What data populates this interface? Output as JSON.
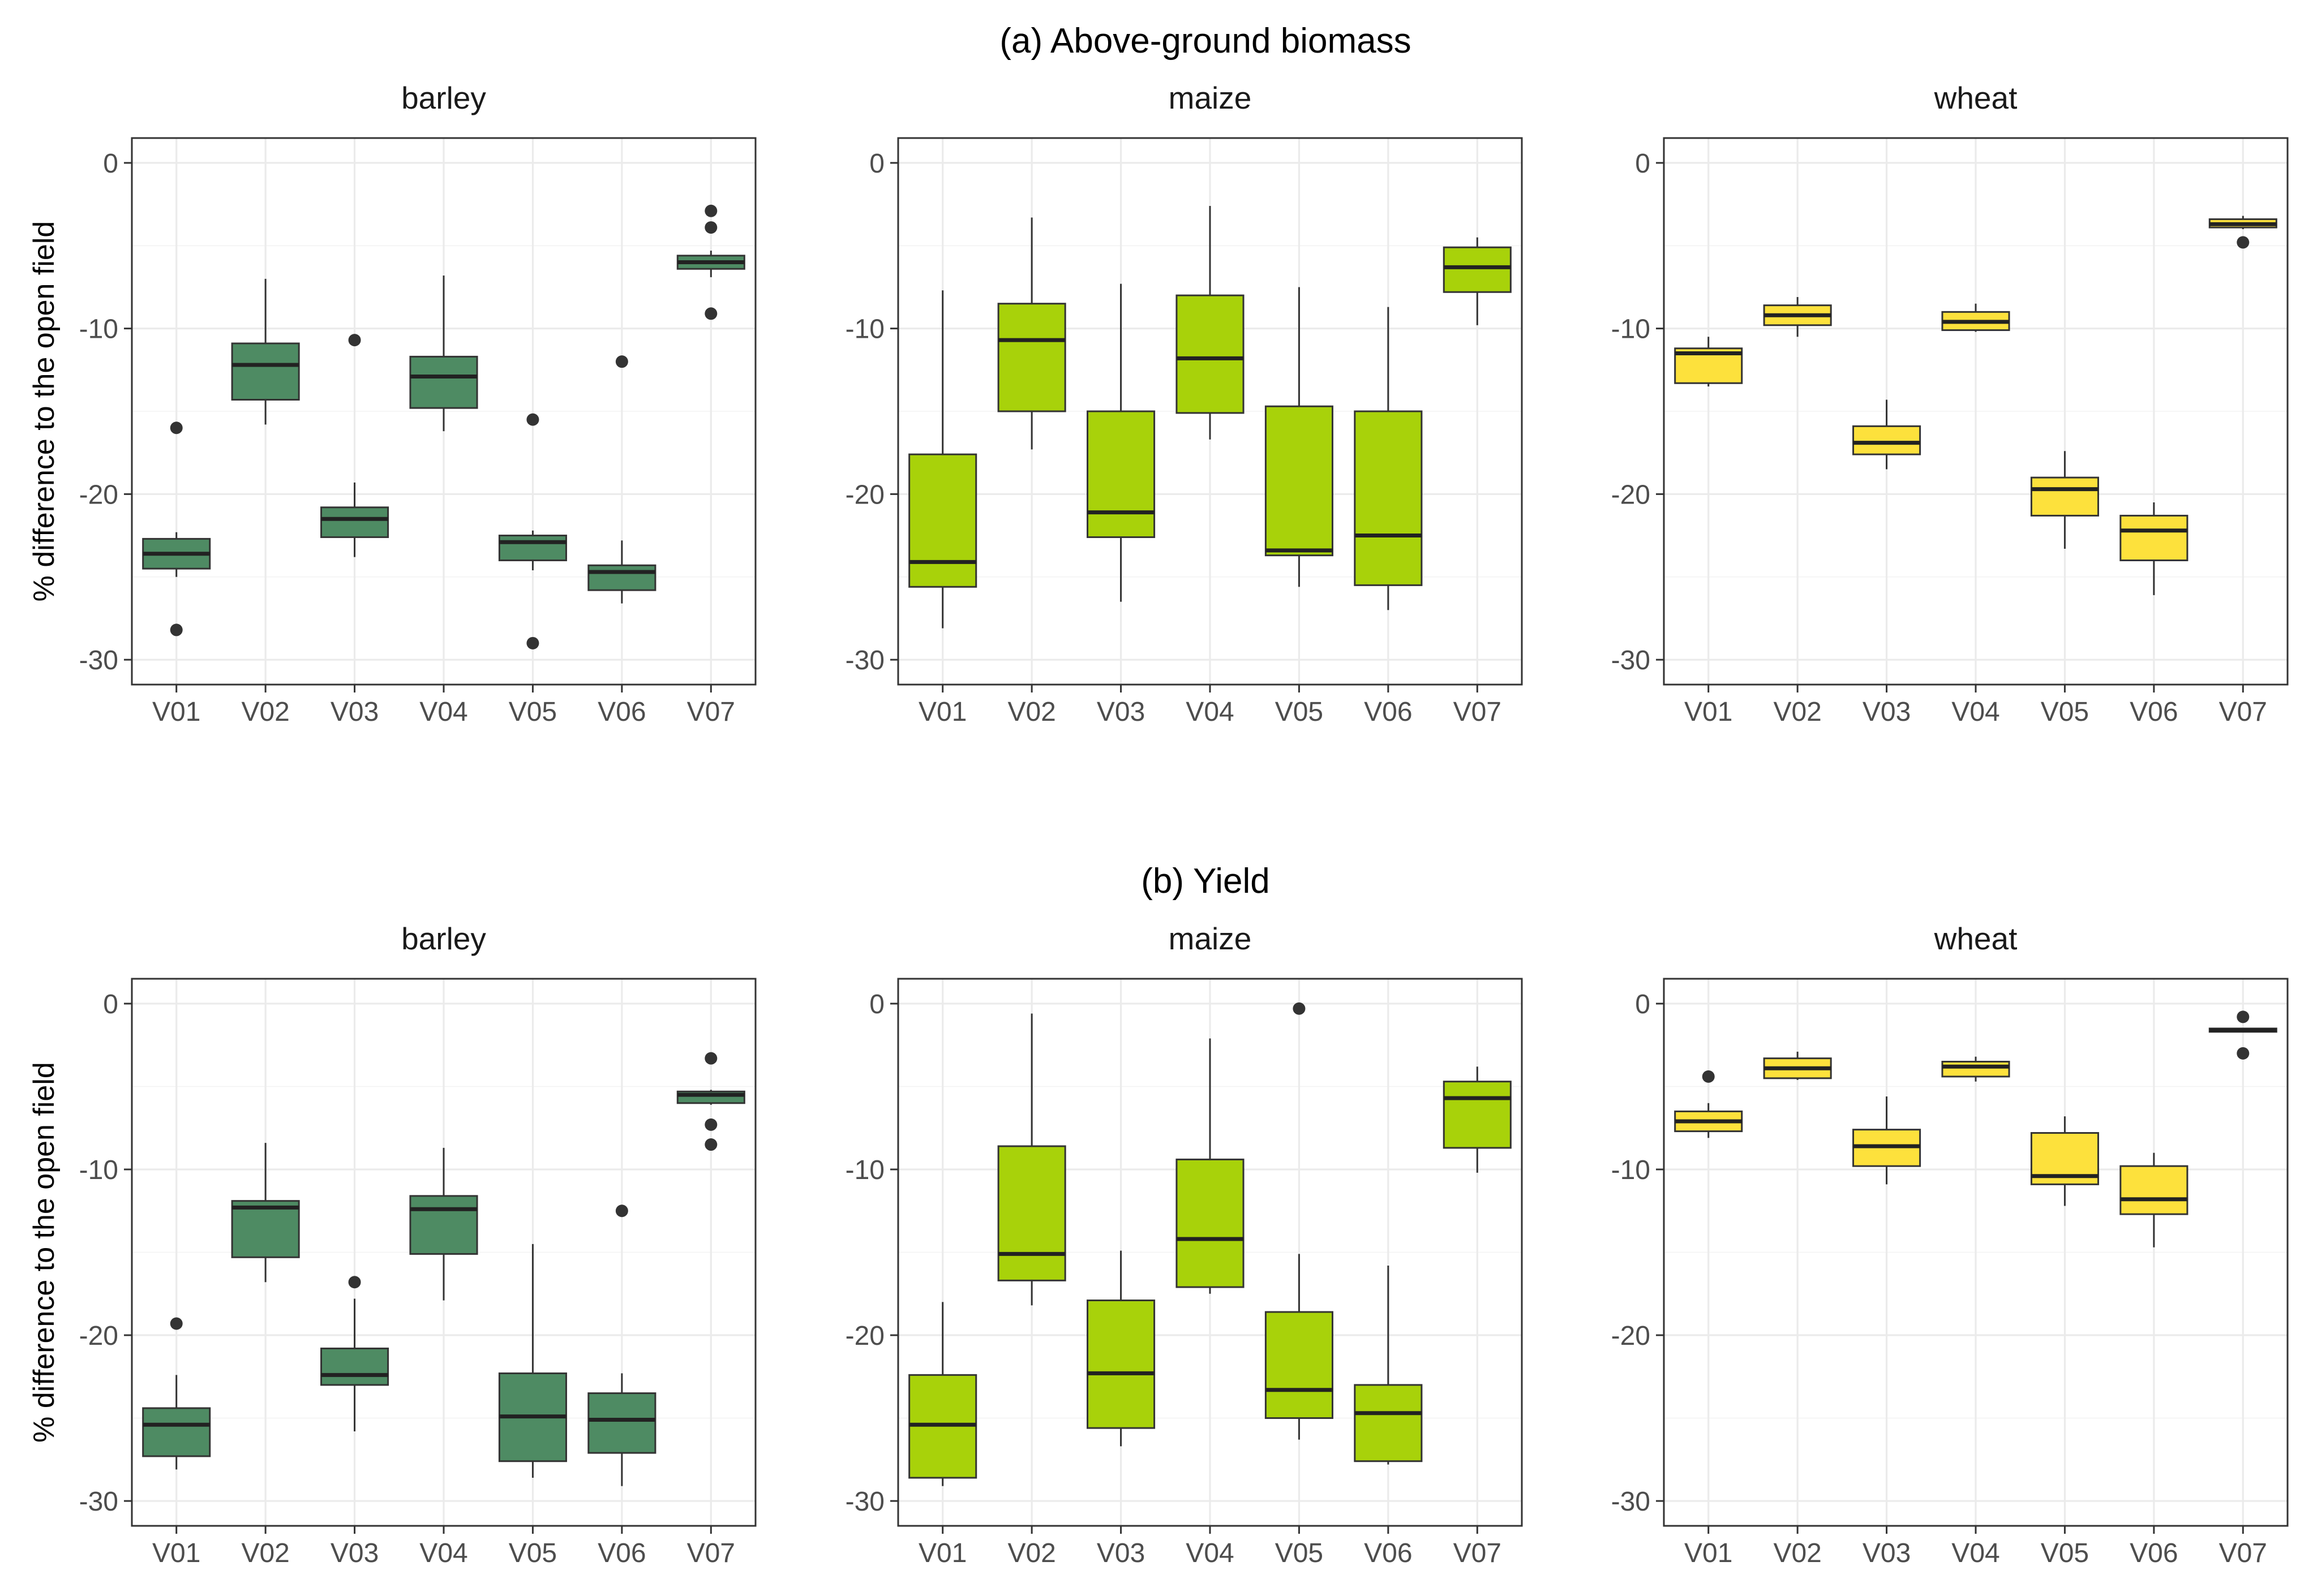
{
  "colors": {
    "barley": "#4e8b63",
    "maize": "#a8d20a",
    "wheat": "#fde13c"
  },
  "chart_data": {
    "type": "boxplot",
    "ylabel": "% difference to the open field",
    "ylim": [
      -31.5,
      1.5
    ],
    "yticks": [
      0,
      -10,
      -20,
      -30
    ],
    "categories": [
      "V01",
      "V02",
      "V03",
      "V04",
      "V05",
      "V06",
      "V07"
    ],
    "sections": [
      {
        "title": "(a) Above-ground biomass",
        "panels": [
          {
            "crop": "barley",
            "boxes": [
              {
                "cat": "V01",
                "low": -25.0,
                "q1": -24.5,
                "median": -23.6,
                "q3": -22.7,
                "high": -22.3,
                "outliers": [
                  -16.0,
                  -28.2
                ]
              },
              {
                "cat": "V02",
                "low": -15.8,
                "q1": -14.3,
                "median": -12.2,
                "q3": -10.9,
                "high": -7.0,
                "outliers": []
              },
              {
                "cat": "V03",
                "low": -23.8,
                "q1": -22.6,
                "median": -21.5,
                "q3": -20.8,
                "high": -19.3,
                "outliers": [
                  -10.7
                ]
              },
              {
                "cat": "V04",
                "low": -16.2,
                "q1": -14.8,
                "median": -12.9,
                "q3": -11.7,
                "high": -6.8,
                "outliers": []
              },
              {
                "cat": "V05",
                "low": -24.6,
                "q1": -24.0,
                "median": -22.9,
                "q3": -22.5,
                "high": -22.2,
                "outliers": [
                  -15.5,
                  -29.0
                ]
              },
              {
                "cat": "V06",
                "low": -26.6,
                "q1": -25.8,
                "median": -24.7,
                "q3": -24.3,
                "high": -22.8,
                "outliers": [
                  -12.0
                ]
              },
              {
                "cat": "V07",
                "low": -6.9,
                "q1": -6.4,
                "median": -6.0,
                "q3": -5.6,
                "high": -5.3,
                "outliers": [
                  -2.9,
                  -3.9,
                  -9.1
                ]
              }
            ]
          },
          {
            "crop": "maize",
            "boxes": [
              {
                "cat": "V01",
                "low": -28.1,
                "q1": -25.6,
                "median": -24.1,
                "q3": -17.6,
                "high": -7.7,
                "outliers": []
              },
              {
                "cat": "V02",
                "low": -17.3,
                "q1": -15.0,
                "median": -10.7,
                "q3": -8.5,
                "high": -3.3,
                "outliers": []
              },
              {
                "cat": "V03",
                "low": -26.5,
                "q1": -22.6,
                "median": -21.1,
                "q3": -15.0,
                "high": -7.3,
                "outliers": []
              },
              {
                "cat": "V04",
                "low": -16.7,
                "q1": -15.1,
                "median": -11.8,
                "q3": -8.0,
                "high": -2.6,
                "outliers": []
              },
              {
                "cat": "V05",
                "low": -25.6,
                "q1": -23.7,
                "median": -23.4,
                "q3": -14.7,
                "high": -7.5,
                "outliers": []
              },
              {
                "cat": "V06",
                "low": -27.0,
                "q1": -25.5,
                "median": -22.5,
                "q3": -15.0,
                "high": -8.7,
                "outliers": []
              },
              {
                "cat": "V07",
                "low": -9.8,
                "q1": -7.8,
                "median": -6.3,
                "q3": -5.1,
                "high": -4.5,
                "outliers": []
              }
            ]
          },
          {
            "crop": "wheat",
            "boxes": [
              {
                "cat": "V01",
                "low": -13.5,
                "q1": -13.3,
                "median": -11.5,
                "q3": -11.2,
                "high": -10.5,
                "outliers": []
              },
              {
                "cat": "V02",
                "low": -10.5,
                "q1": -9.8,
                "median": -9.2,
                "q3": -8.6,
                "high": -8.1,
                "outliers": []
              },
              {
                "cat": "V03",
                "low": -18.5,
                "q1": -17.6,
                "median": -16.9,
                "q3": -15.9,
                "high": -14.3,
                "outliers": []
              },
              {
                "cat": "V04",
                "low": -10.2,
                "q1": -10.1,
                "median": -9.6,
                "q3": -9.0,
                "high": -8.5,
                "outliers": []
              },
              {
                "cat": "V05",
                "low": -23.3,
                "q1": -21.3,
                "median": -19.7,
                "q3": -19.0,
                "high": -17.4,
                "outliers": []
              },
              {
                "cat": "V06",
                "low": -26.1,
                "q1": -24.0,
                "median": -22.2,
                "q3": -21.3,
                "high": -20.5,
                "outliers": []
              },
              {
                "cat": "V07",
                "low": -4.0,
                "q1": -3.9,
                "median": -3.7,
                "q3": -3.4,
                "high": -3.2,
                "outliers": [
                  -4.8
                ]
              }
            ]
          }
        ]
      },
      {
        "title": "(b) Yield",
        "panels": [
          {
            "crop": "barley",
            "boxes": [
              {
                "cat": "V01",
                "low": -28.1,
                "q1": -27.3,
                "median": -25.4,
                "q3": -24.4,
                "high": -22.4,
                "outliers": [
                  -19.3
                ]
              },
              {
                "cat": "V02",
                "low": -16.8,
                "q1": -15.3,
                "median": -12.3,
                "q3": -11.9,
                "high": -8.4,
                "outliers": []
              },
              {
                "cat": "V03",
                "low": -25.8,
                "q1": -23.0,
                "median": -22.4,
                "q3": -20.8,
                "high": -17.8,
                "outliers": [
                  -16.8
                ]
              },
              {
                "cat": "V04",
                "low": -17.9,
                "q1": -15.1,
                "median": -12.4,
                "q3": -11.6,
                "high": -8.7,
                "outliers": []
              },
              {
                "cat": "V05",
                "low": -28.6,
                "q1": -27.6,
                "median": -24.9,
                "q3": -22.3,
                "high": -14.5,
                "outliers": []
              },
              {
                "cat": "V06",
                "low": -29.1,
                "q1": -27.1,
                "median": -25.1,
                "q3": -23.5,
                "high": -22.3,
                "outliers": [
                  -12.5
                ]
              },
              {
                "cat": "V07",
                "low": -6.1,
                "q1": -6.0,
                "median": -5.5,
                "q3": -5.3,
                "high": -5.2,
                "outliers": [
                  -3.3,
                  -7.3,
                  -8.5
                ]
              }
            ]
          },
          {
            "crop": "maize",
            "boxes": [
              {
                "cat": "V01",
                "low": -29.1,
                "q1": -28.6,
                "median": -25.4,
                "q3": -22.4,
                "high": -18.0,
                "outliers": []
              },
              {
                "cat": "V02",
                "low": -18.2,
                "q1": -16.7,
                "median": -15.1,
                "q3": -8.6,
                "high": -0.6,
                "outliers": []
              },
              {
                "cat": "V03",
                "low": -26.7,
                "q1": -25.6,
                "median": -22.3,
                "q3": -17.9,
                "high": -14.9,
                "outliers": []
              },
              {
                "cat": "V04",
                "low": -17.5,
                "q1": -17.1,
                "median": -14.2,
                "q3": -9.4,
                "high": -2.1,
                "outliers": []
              },
              {
                "cat": "V05",
                "low": -26.3,
                "q1": -25.0,
                "median": -23.3,
                "q3": -18.6,
                "high": -15.1,
                "outliers": [
                  -0.3
                ]
              },
              {
                "cat": "V06",
                "low": -27.8,
                "q1": -27.6,
                "median": -24.7,
                "q3": -23.0,
                "high": -15.8,
                "outliers": []
              },
              {
                "cat": "V07",
                "low": -10.2,
                "q1": -8.7,
                "median": -5.7,
                "q3": -4.7,
                "high": -3.8,
                "outliers": []
              }
            ]
          },
          {
            "crop": "wheat",
            "boxes": [
              {
                "cat": "V01",
                "low": -8.1,
                "q1": -7.7,
                "median": -7.1,
                "q3": -6.5,
                "high": -6.0,
                "outliers": [
                  -4.4
                ]
              },
              {
                "cat": "V02",
                "low": -4.6,
                "q1": -4.5,
                "median": -3.9,
                "q3": -3.3,
                "high": -2.9,
                "outliers": []
              },
              {
                "cat": "V03",
                "low": -10.9,
                "q1": -9.8,
                "median": -8.6,
                "q3": -7.6,
                "high": -5.6,
                "outliers": []
              },
              {
                "cat": "V04",
                "low": -4.7,
                "q1": -4.4,
                "median": -3.8,
                "q3": -3.5,
                "high": -3.2,
                "outliers": []
              },
              {
                "cat": "V05",
                "low": -12.2,
                "q1": -10.9,
                "median": -10.4,
                "q3": -7.8,
                "high": -6.8,
                "outliers": []
              },
              {
                "cat": "V06",
                "low": -14.7,
                "q1": -12.7,
                "median": -11.8,
                "q3": -9.8,
                "high": -9.0,
                "outliers": []
              },
              {
                "cat": "V07",
                "low": -1.7,
                "q1": -1.7,
                "median": -1.6,
                "q3": -1.5,
                "high": -1.5,
                "outliers": [
                  -0.8,
                  -3.0
                ]
              }
            ]
          }
        ]
      }
    ]
  }
}
